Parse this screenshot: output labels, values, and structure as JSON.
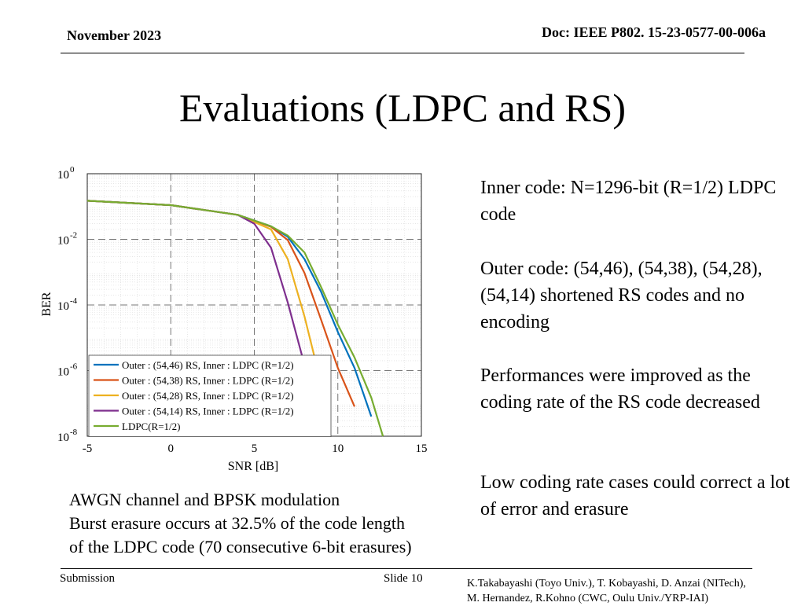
{
  "header": {
    "date": "November 2023",
    "doc_id": "Doc: IEEE P802. 15-23-0577-00-006a"
  },
  "title": "Evaluations (LDPC and RS)",
  "description": {
    "inner": "Inner code: N=1296-bit (R=1/2) LDPC code",
    "outer": "Outer code: (54,46), (54,38), (54,28), (54,14) shortened RS codes and no encoding",
    "performance": "Performances were improved as the coding rate of the RS code decreased",
    "low_rate": "Low coding rate cases could correct a lot of error and erasure"
  },
  "caption": {
    "line1": "AWGN channel and BPSK modulation",
    "line2": "Burst erasure occurs at 32.5% of the code length",
    "line3": "of the LDPC code (70 consecutive 6-bit erasures)"
  },
  "footer": {
    "left": "Submission",
    "slide": "Slide 10",
    "authors_line1": "K.Takabayashi (Toyo Univ.), T. Kobayashi, D. Anzai (NITech),",
    "authors_line2": "M. Hernandez,  R.Kohno (CWC, Oulu Univ./YRP-IAI)"
  },
  "chart_data": {
    "type": "line",
    "xlabel": "SNR [dB]",
    "ylabel": "BER",
    "xlim": [
      -5,
      15
    ],
    "ylim": [
      1e-08,
      1
    ],
    "yscale": "log",
    "grid": true,
    "legend_position": "bottom-left",
    "x_ticks": [
      "-5",
      "0",
      "5",
      "10",
      "15"
    ],
    "y_ticks": [
      {
        "base": "10",
        "exp": "0",
        "value": 1
      },
      {
        "base": "10",
        "exp": "-2",
        "value": 0.01
      },
      {
        "base": "10",
        "exp": "-4",
        "value": 0.0001
      },
      {
        "base": "10",
        "exp": "-6",
        "value": 1e-06
      },
      {
        "base": "10",
        "exp": "-8",
        "value": 1e-08
      }
    ],
    "series": [
      {
        "name": "Outer : (54,46) RS, Inner : LDPC (R=1/2)",
        "color": "#0072BD",
        "points": [
          [
            -5,
            0.15
          ],
          [
            0,
            0.11
          ],
          [
            4,
            0.056
          ],
          [
            6,
            0.025
          ],
          [
            7,
            0.012
          ],
          [
            8,
            0.0025
          ],
          [
            9,
            0.00025
          ],
          [
            10,
            1.5e-05
          ],
          [
            11,
            1.2e-06
          ],
          [
            12,
            4e-08
          ]
        ]
      },
      {
        "name": "Outer : (54,38) RS, Inner : LDPC (R=1/2)",
        "color": "#D95319",
        "points": [
          [
            -5,
            0.15
          ],
          [
            0,
            0.11
          ],
          [
            4,
            0.056
          ],
          [
            6,
            0.024
          ],
          [
            7,
            0.0095
          ],
          [
            8,
            0.00095
          ],
          [
            9,
            3.5e-05
          ],
          [
            10,
            1.2e-06
          ],
          [
            11,
            8e-08
          ]
        ]
      },
      {
        "name": "Outer : (54,28) RS, Inner : LDPC (R=1/2)",
        "color": "#EDB120",
        "points": [
          [
            -5,
            0.15
          ],
          [
            0,
            0.11
          ],
          [
            4,
            0.056
          ],
          [
            6,
            0.02
          ],
          [
            7,
            0.0025
          ],
          [
            8,
            4.5e-05
          ],
          [
            9,
            4e-07
          ],
          [
            9.5,
            3e-08
          ]
        ]
      },
      {
        "name": "Outer : (54,14) RS, Inner : LDPC (R=1/2)",
        "color": "#7E2F8E",
        "points": [
          [
            -5,
            0.15
          ],
          [
            0,
            0.11
          ],
          [
            4,
            0.056
          ],
          [
            5,
            0.03
          ],
          [
            6,
            0.0055
          ],
          [
            7,
            0.00012
          ],
          [
            8,
            1.5e-06
          ]
        ]
      },
      {
        "name": "LDPC(R=1/2)",
        "color": "#77AC30",
        "points": [
          [
            -5,
            0.15
          ],
          [
            0,
            0.11
          ],
          [
            4,
            0.056
          ],
          [
            6,
            0.025
          ],
          [
            7,
            0.013
          ],
          [
            8,
            0.004
          ],
          [
            9,
            0.00035
          ],
          [
            10,
            2.5e-05
          ],
          [
            11,
            2.5e-06
          ],
          [
            12,
            1.5e-07
          ],
          [
            12.7,
            1e-08
          ]
        ]
      }
    ]
  }
}
